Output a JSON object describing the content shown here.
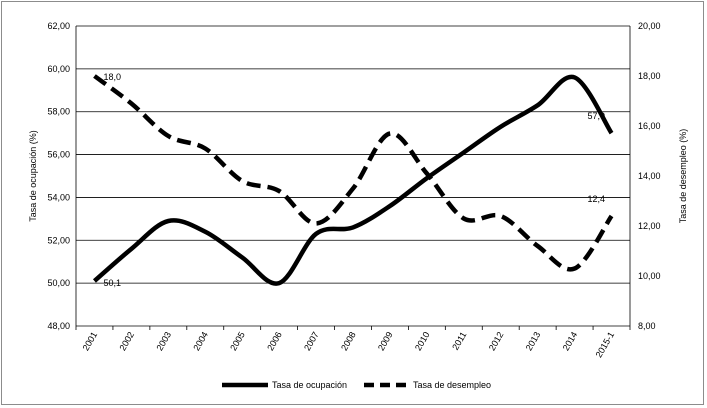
{
  "chart_data": {
    "type": "line",
    "categories": [
      "2001",
      "2002",
      "2003",
      "2004",
      "2005",
      "2006",
      "2007",
      "2008",
      "2009",
      "2010",
      "2011",
      "2012",
      "2013",
      "2014",
      "2015-1"
    ],
    "series": [
      {
        "name": "Tasa de ocupación",
        "axis": "left",
        "style": "solid",
        "color": "#000000",
        "values": [
          50.1,
          51.6,
          52.9,
          52.4,
          51.2,
          50.0,
          52.3,
          52.6,
          53.6,
          54.9,
          56.1,
          57.3,
          58.3,
          59.6,
          57.0
        ]
      },
      {
        "name": "Tasa de desempleo",
        "axis": "right",
        "style": "dashed",
        "color": "#000000",
        "values": [
          18.0,
          16.9,
          15.6,
          15.1,
          13.8,
          13.4,
          12.1,
          13.5,
          15.7,
          14.1,
          12.3,
          12.4,
          11.2,
          10.3,
          12.4
        ]
      }
    ],
    "y_left": {
      "label": "Tasa de ocupación (%)",
      "min": 48,
      "max": 62,
      "step": 2,
      "tick_labels": [
        "48,00",
        "50,00",
        "52,00",
        "54,00",
        "56,00",
        "58,00",
        "60,00",
        "62,00"
      ]
    },
    "y_right": {
      "label": "Tasa de desempleo (%)",
      "min": 8,
      "max": 20,
      "step": 2,
      "tick_labels": [
        "8,00",
        "10,00",
        "12,00",
        "14,00",
        "16,00",
        "18,00",
        "20,00"
      ]
    },
    "data_labels": [
      {
        "series": 0,
        "index": 0,
        "text": "50,1"
      },
      {
        "series": 0,
        "index": 14,
        "text": "57,0"
      },
      {
        "series": 1,
        "index": 0,
        "text": "18,0"
      },
      {
        "series": 1,
        "index": 14,
        "text": "12,4"
      }
    ],
    "grid": true,
    "legend": "bottom"
  }
}
